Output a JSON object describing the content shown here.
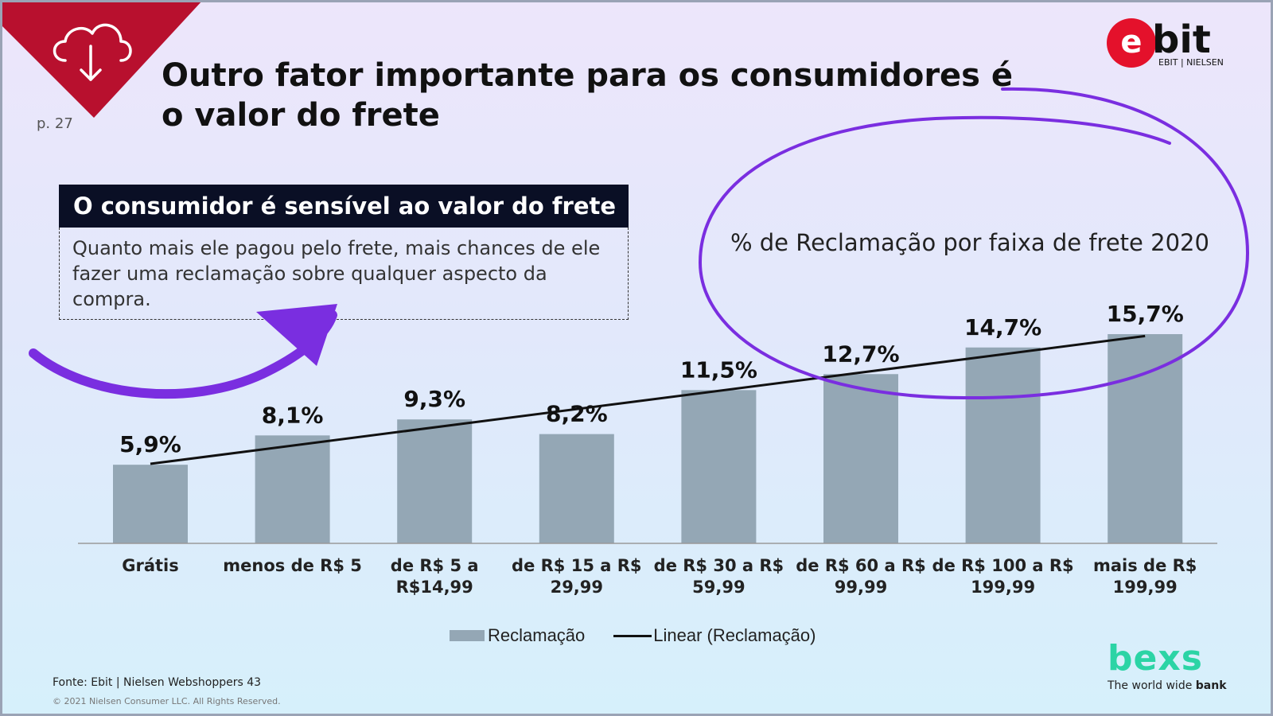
{
  "page": {
    "title": "Outro fator importante para os consumidores é o valor do frete",
    "page_number": "p. 27"
  },
  "callout": {
    "heading": "O consumidor é sensível ao valor do frete",
    "body": "Quanto mais ele pagou pelo frete, mais chances de ele fazer uma reclamação sobre qualquer aspecto da compra."
  },
  "brands": {
    "ebit_letter": "e",
    "ebit_word": "bit",
    "ebit_sub": "EBIT | NIELSEN",
    "bexs": "bexs",
    "bexs_tag": "The world wide",
    "bexs_tag_bold": "bank"
  },
  "footer": {
    "source": "Fonte: Ebit | Nielsen Webshoppers 43",
    "copyright": "© 2021 Nielsen Consumer LLC. All Rights Reserved."
  },
  "colors": {
    "bar": "#94a7b5",
    "trend": "#111111",
    "corner_red": "#b8102e",
    "highlight_purple": "#7a2ee0",
    "bexs_green": "#2bd4a5"
  },
  "icons": [
    "cloud-download-icon",
    "curved-arrow-annotation",
    "ellipse-annotation"
  ],
  "chart_data": {
    "type": "bar",
    "subtitle": "% de Reclamação por faixa de frete 2020",
    "categories": [
      [
        "Grátis"
      ],
      [
        "menos de R$ 5"
      ],
      [
        "de R$ 5 a",
        "R$14,99"
      ],
      [
        "de R$ 15 a R$",
        "29,99"
      ],
      [
        "de R$ 30 a R$",
        "59,99"
      ],
      [
        "de R$ 60 a R$",
        "99,99"
      ],
      [
        "de R$ 100 a R$",
        "199,99"
      ],
      [
        "mais de R$",
        "199,99"
      ]
    ],
    "series": [
      {
        "name": "Reclamação",
        "values": [
          5.9,
          8.1,
          9.3,
          8.2,
          11.5,
          12.7,
          14.7,
          15.7
        ],
        "labels": [
          "5,9%",
          "8,1%",
          "9,3%",
          "8,2%",
          "11,5%",
          "12,7%",
          "14,7%",
          "15,7%"
        ]
      }
    ],
    "trendline": {
      "name": "Linear (Reclamação)",
      "type": "linear"
    },
    "legend": [
      "Reclamação",
      "Linear (Reclamação)"
    ],
    "legend_position": "bottom",
    "ylim": [
      0,
      16
    ],
    "grid": false
  }
}
